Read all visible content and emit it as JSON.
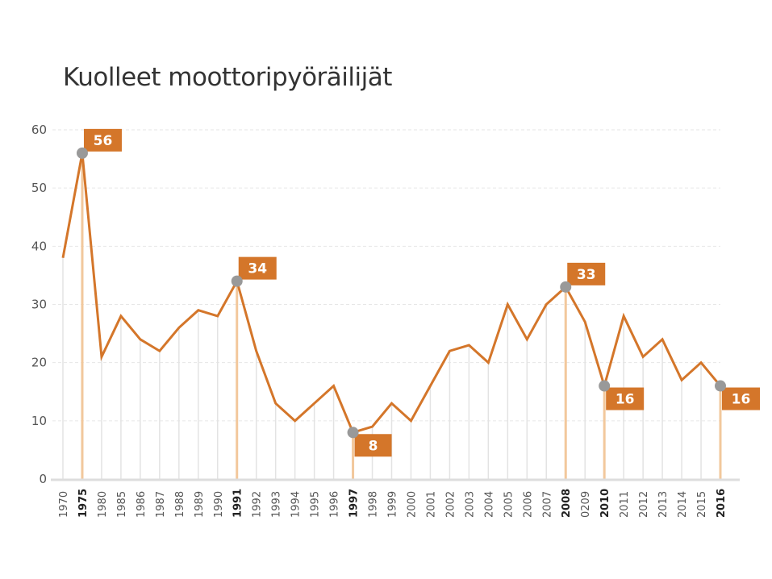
{
  "chart_data": {
    "type": "line",
    "title": "Kuolleet moottoripyöräilijät",
    "xlabel": "",
    "ylabel": "",
    "ylim": [
      0,
      60
    ],
    "yticks": [
      0,
      10,
      20,
      30,
      40,
      50,
      60
    ],
    "grid": true,
    "categories": [
      "1970",
      "1975",
      "1980",
      "1985",
      "1986",
      "1987",
      "1988",
      "1989",
      "1990",
      "1991",
      "1992",
      "1993",
      "1994",
      "1995",
      "1996",
      "1997",
      "1998",
      "1999",
      "2000",
      "2001",
      "2002",
      "2003",
      "2004",
      "2005",
      "2006",
      "2007",
      "2008",
      "0209",
      "2010",
      "2011",
      "2012",
      "2013",
      "2014",
      "2015",
      "2016"
    ],
    "values": [
      38,
      56,
      21,
      28,
      24,
      22,
      26,
      29,
      28,
      34,
      22,
      13,
      10,
      13,
      16,
      8,
      9,
      13,
      10,
      16,
      22,
      23,
      20,
      30,
      24,
      30,
      33,
      27,
      16,
      28,
      21,
      24,
      17,
      20,
      16
    ],
    "highlights": [
      {
        "category": "1975",
        "value": 56,
        "label": "56",
        "placement": "above-right"
      },
      {
        "category": "1991",
        "value": 34,
        "label": "34",
        "placement": "above-right"
      },
      {
        "category": "1997",
        "value": 8,
        "label": "8",
        "placement": "below-right"
      },
      {
        "category": "2008",
        "value": 33,
        "label": "33",
        "placement": "above-right"
      },
      {
        "category": "2010",
        "value": 16,
        "label": "16",
        "placement": "below-right"
      },
      {
        "category": "2016",
        "value": 16,
        "label": "16",
        "placement": "below-right"
      }
    ],
    "colors": {
      "line": "#d4762a",
      "label_bg": "#d4762a",
      "marker": "#999999",
      "highlight_stem": "#f2c89c",
      "stem": "#e3e3e3",
      "grid": "#e6e6e6",
      "axis": "#dddddd"
    }
  }
}
